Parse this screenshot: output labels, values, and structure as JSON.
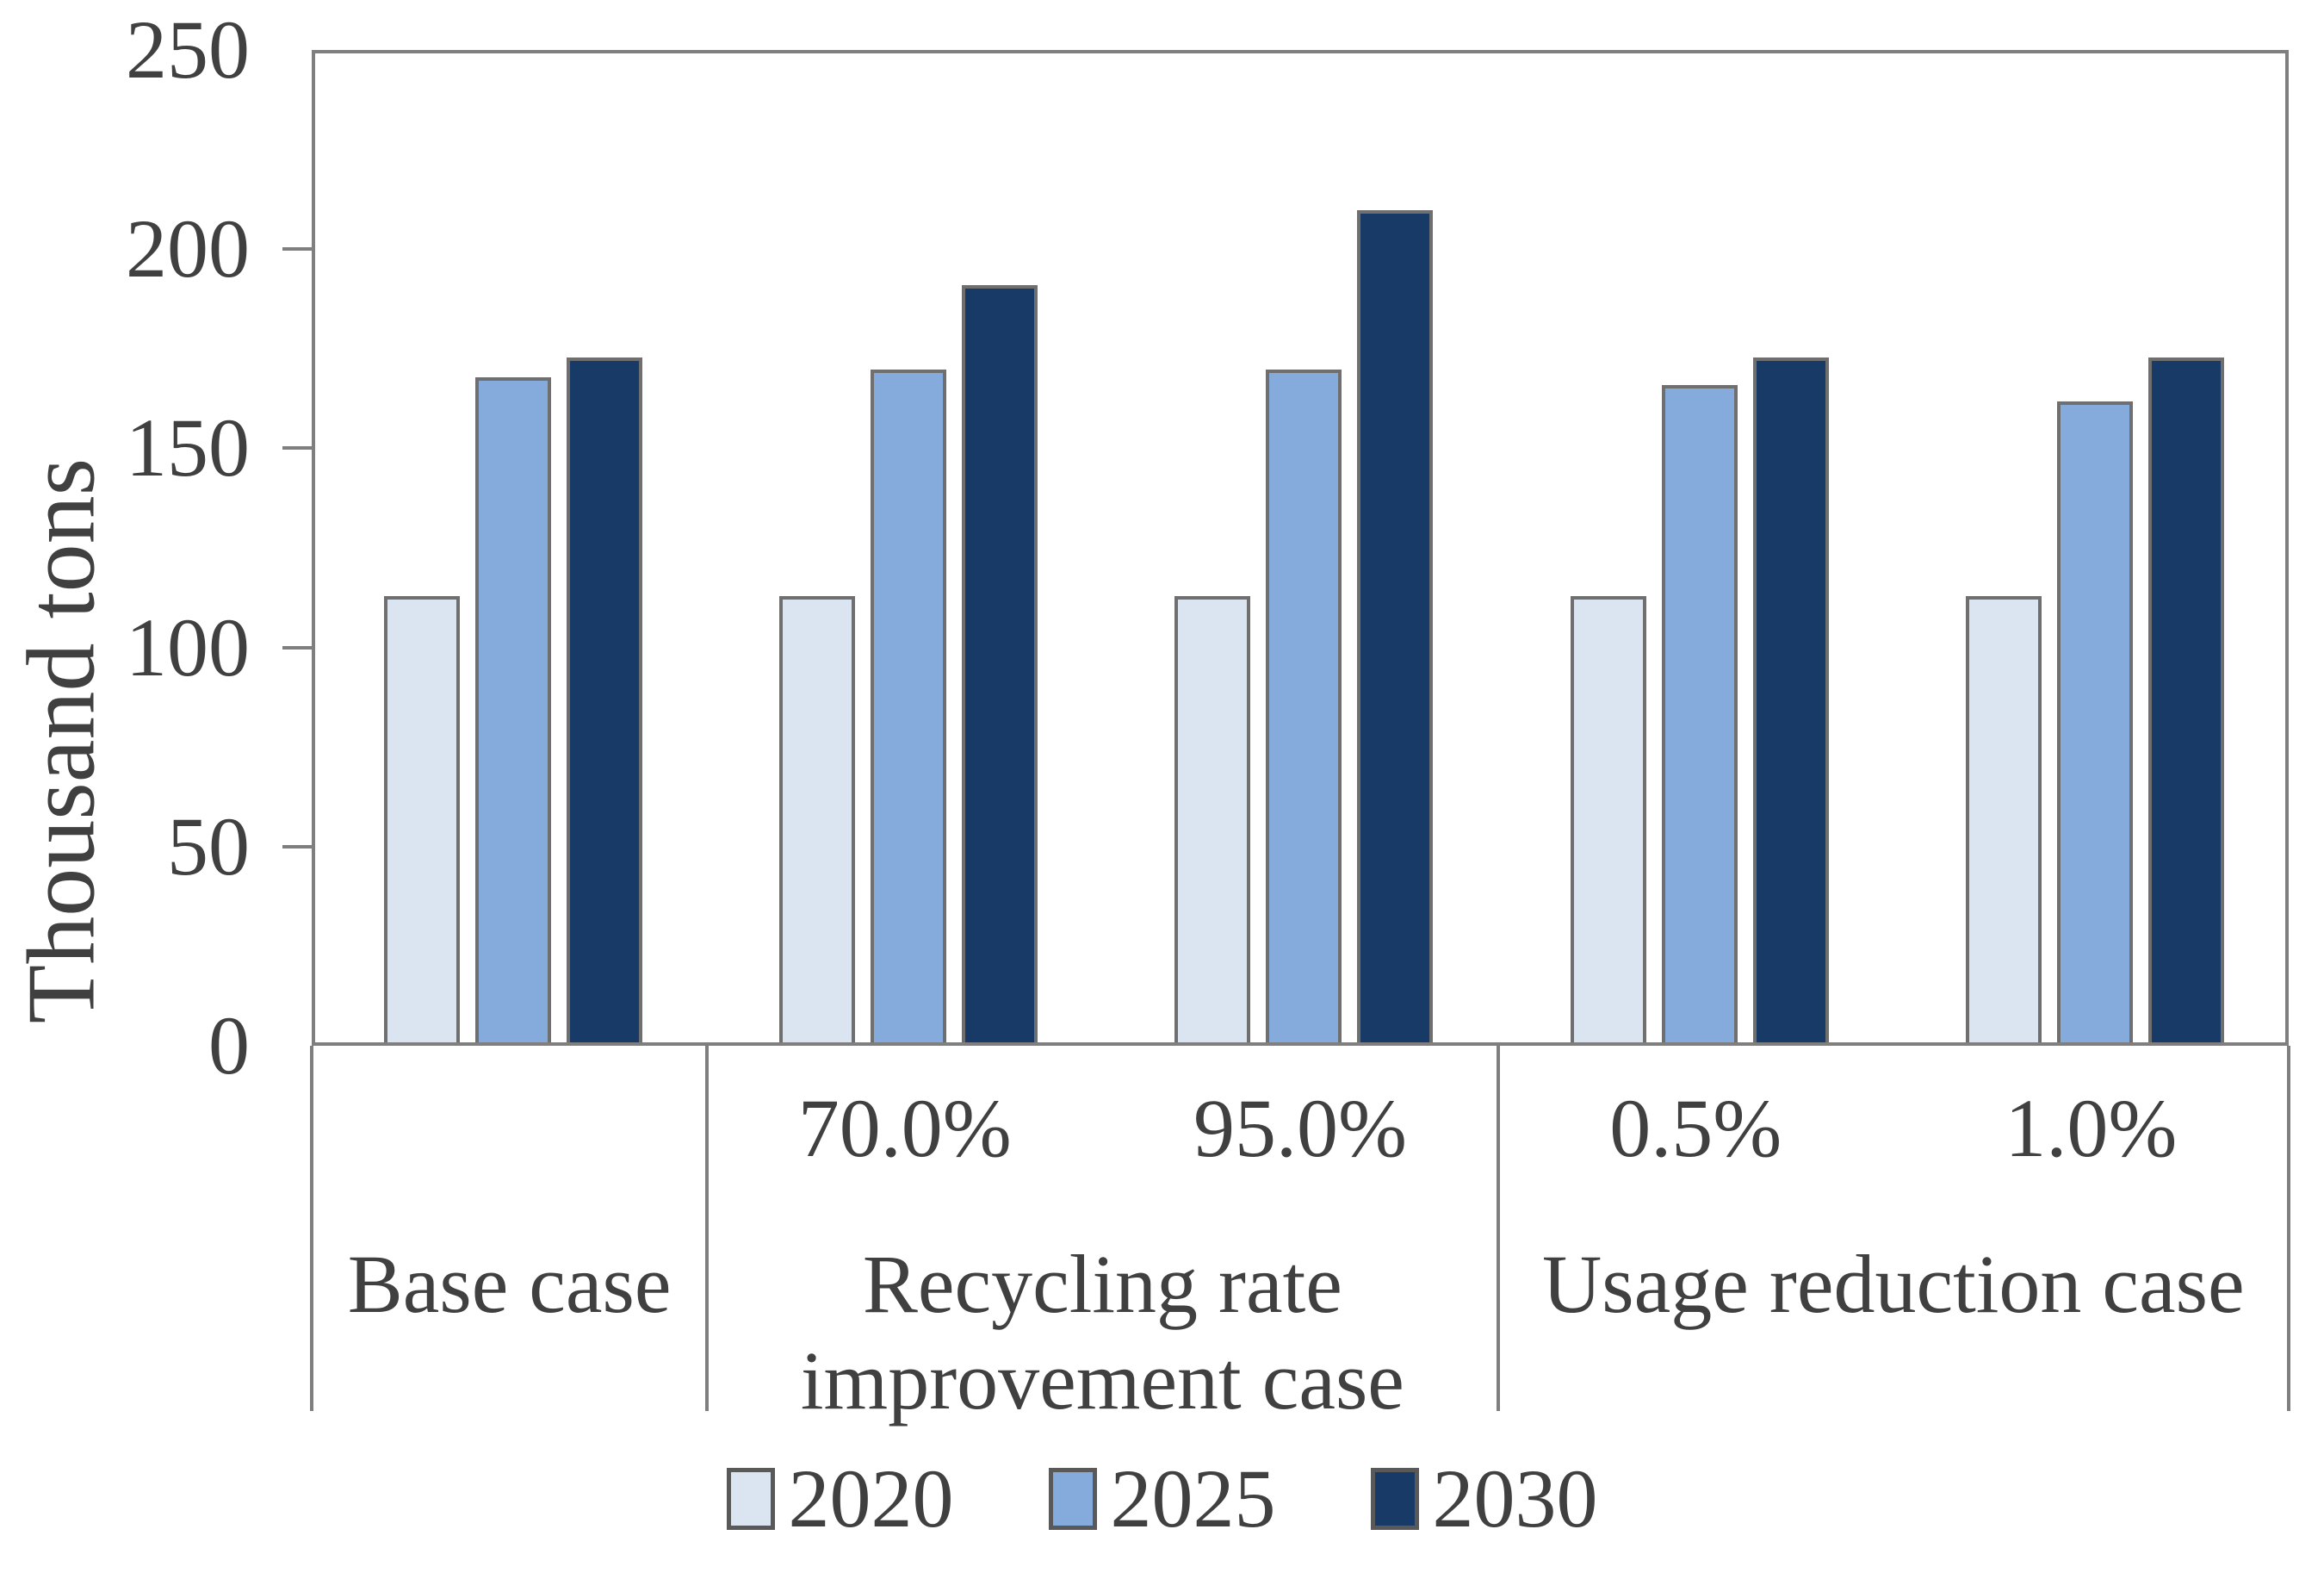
{
  "chart_data": {
    "type": "bar",
    "title": "",
    "ylabel": "Thousand tons",
    "xlabel": "",
    "ylim": [
      0,
      250
    ],
    "yticks": [
      0,
      50,
      100,
      150,
      200,
      250
    ],
    "grid": false,
    "legend_position": "bottom",
    "series": [
      {
        "name": "2020",
        "color": "#dbe5f1"
      },
      {
        "name": "2025",
        "color": "#84abdb"
      },
      {
        "name": "2030",
        "color": "#173a67"
      }
    ],
    "slots": [
      {
        "sub_label": "",
        "values": [
          112,
          167,
          172
        ]
      },
      {
        "sub_label": "70.0%",
        "values": [
          112,
          169,
          190
        ]
      },
      {
        "sub_label": "95.0%",
        "values": [
          112,
          169,
          209
        ]
      },
      {
        "sub_label": "0.5%",
        "values": [
          112,
          165,
          172
        ]
      },
      {
        "sub_label": "1.0%",
        "values": [
          112,
          161,
          172
        ]
      }
    ],
    "group_labels": [
      {
        "label": "Base case",
        "start_slot": 0,
        "end_slot": 1
      },
      {
        "label": "Recycling rate improvement case",
        "start_slot": 1,
        "end_slot": 3
      },
      {
        "label": "Usage reduction case",
        "start_slot": 3,
        "end_slot": 5
      }
    ],
    "legend": [
      "2020",
      "2025",
      "2030"
    ]
  },
  "colors": {
    "axis_line": "#7f7f7f",
    "bar_border": "#6f6f6f",
    "text": "#404040",
    "background": "#ffffff"
  }
}
